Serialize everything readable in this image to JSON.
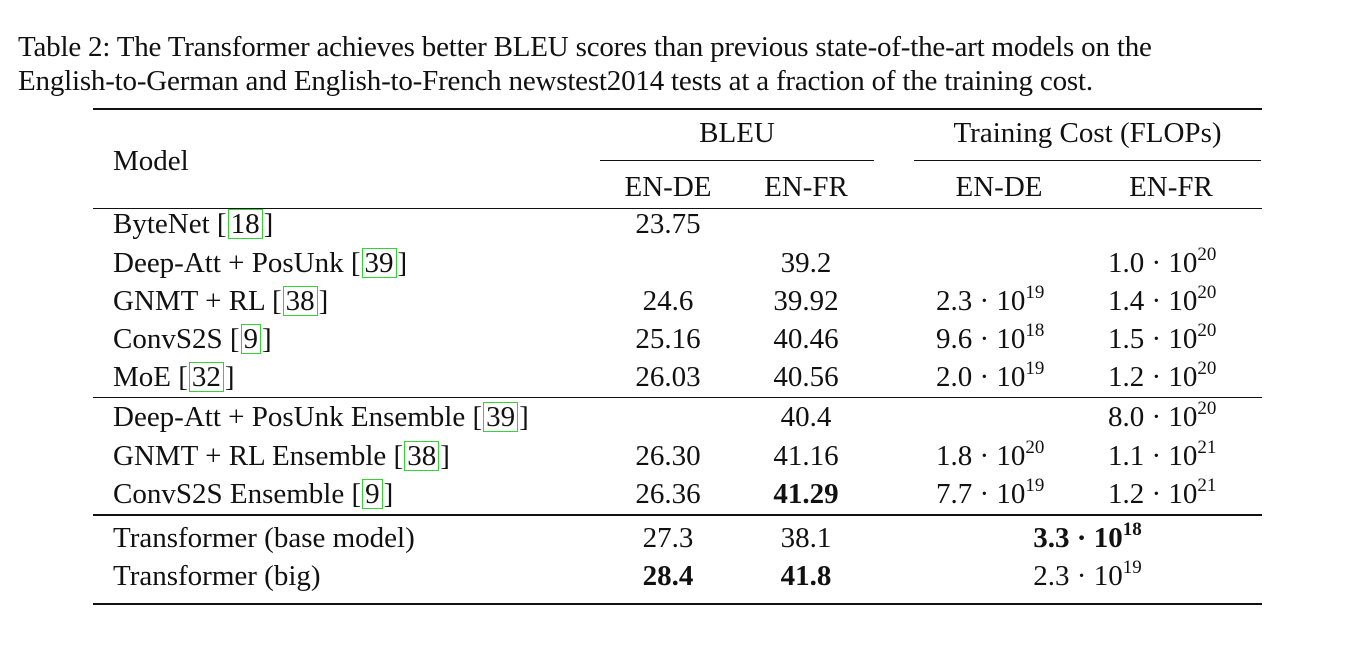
{
  "caption": {
    "line1": "Table 2: The Transformer achieves better BLEU scores than previous state-of-the-art models on the",
    "line2": "English-to-German and English-to-French newstest2014 tests at a fraction of the training cost."
  },
  "header": {
    "model": "Model",
    "bleu": "BLEU",
    "cost": "Training Cost (FLOPs)",
    "bleu_ende": "EN-DE",
    "bleu_enfr": "EN-FR",
    "cost_ende": "EN-DE",
    "cost_enfr": "EN-FR"
  },
  "rows": [
    {
      "name": "ByteNet [",
      "cite": "18",
      "close": "]",
      "bleu_ende": "23.75",
      "bleu_enfr": "",
      "cost_ende_m": "",
      "cost_ende_e": "",
      "cost_enfr_m": "",
      "cost_enfr_e": ""
    },
    {
      "name": "Deep-Att + PosUnk [",
      "cite": "39",
      "close": "]",
      "bleu_ende": "",
      "bleu_enfr": "39.2",
      "cost_ende_m": "",
      "cost_ende_e": "",
      "cost_enfr_m": "1.0 · 10",
      "cost_enfr_e": "20"
    },
    {
      "name": "GNMT + RL [",
      "cite": "38",
      "close": "]",
      "bleu_ende": "24.6",
      "bleu_enfr": "39.92",
      "cost_ende_m": "2.3 · 10",
      "cost_ende_e": "19",
      "cost_enfr_m": "1.4 · 10",
      "cost_enfr_e": "20"
    },
    {
      "name": "ConvS2S [",
      "cite": "9",
      "close": "]",
      "bleu_ende": "25.16",
      "bleu_enfr": "40.46",
      "cost_ende_m": "9.6 · 10",
      "cost_ende_e": "18",
      "cost_enfr_m": "1.5 · 10",
      "cost_enfr_e": "20"
    },
    {
      "name": "MoE [",
      "cite": "32",
      "close": "]",
      "bleu_ende": "26.03",
      "bleu_enfr": "40.56",
      "cost_ende_m": "2.0 · 10",
      "cost_ende_e": "19",
      "cost_enfr_m": "1.2 · 10",
      "cost_enfr_e": "20"
    },
    {
      "name": "Deep-Att + PosUnk Ensemble [",
      "cite": "39",
      "close": "]",
      "bleu_ende": "",
      "bleu_enfr": "40.4",
      "cost_ende_m": "",
      "cost_ende_e": "",
      "cost_enfr_m": "8.0 · 10",
      "cost_enfr_e": "20"
    },
    {
      "name": "GNMT + RL Ensemble [",
      "cite": "38",
      "close": "]",
      "bleu_ende": "26.30",
      "bleu_enfr": "41.16",
      "cost_ende_m": "1.8 · 10",
      "cost_ende_e": "20",
      "cost_enfr_m": "1.1 · 10",
      "cost_enfr_e": "21"
    },
    {
      "name": "ConvS2S Ensemble [",
      "cite": "9",
      "close": "]",
      "bleu_ende": "26.36",
      "bleu_enfr": "41.29",
      "cost_ende_m": "7.7 · 10",
      "cost_ende_e": "19",
      "cost_enfr_m": "1.2 · 10",
      "cost_enfr_e": "21"
    }
  ],
  "transformer_rows": [
    {
      "name": "Transformer (base model)",
      "bleu_ende": "27.3",
      "bleu_enfr": "38.1",
      "cost_m": "3.3 · 10",
      "cost_e": "18"
    },
    {
      "name": "Transformer (big)",
      "bleu_ende": "28.4",
      "bleu_enfr": "41.8",
      "cost_m": "2.3 · 10",
      "cost_e": "19"
    }
  ],
  "bold_cells": [
    "ConvS2S Ensemble BLEU EN-FR",
    "Transformer (base model) Training Cost",
    "Transformer (big) BLEU EN-DE",
    "Transformer (big) BLEU EN-FR"
  ]
}
